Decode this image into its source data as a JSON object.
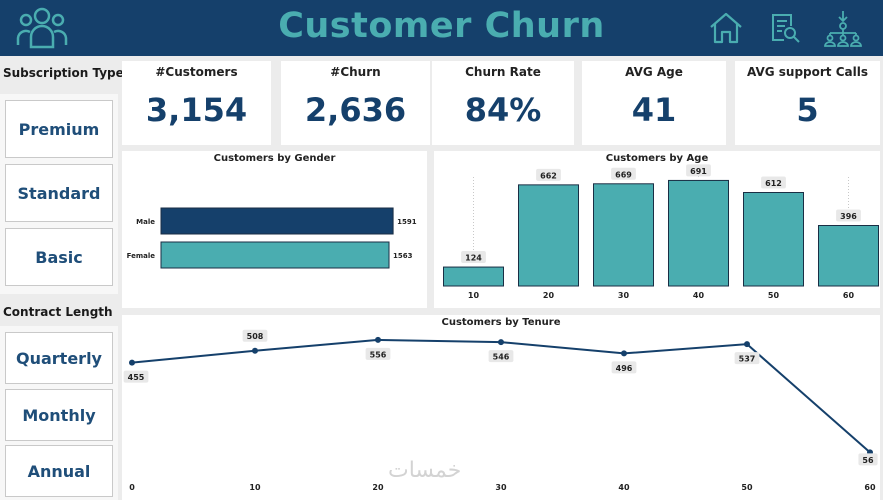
{
  "header": {
    "title": "Customer Churn",
    "icons": [
      "people-icon",
      "home-icon",
      "report-search-icon",
      "org-chart-icon"
    ]
  },
  "subscription": {
    "heading": "Subscription Type",
    "options": [
      "Premium",
      "Standard",
      "Basic"
    ]
  },
  "contract": {
    "heading": "Contract Length",
    "options": [
      "Quarterly",
      "Monthly",
      "Annual"
    ]
  },
  "kpis": [
    {
      "label": "#Customers",
      "value": "3,154"
    },
    {
      "label": "#Churn",
      "value": "2,636"
    },
    {
      "label": "Churn Rate",
      "value": "84%"
    },
    {
      "label": "AVG Age",
      "value": "41"
    },
    {
      "label": "AVG support Calls",
      "value": "5"
    }
  ],
  "colors": {
    "navy": "#15406b",
    "teal": "#4aadb0"
  },
  "watermark": "خمسات",
  "chart_data": [
    {
      "type": "bar",
      "orientation": "horizontal",
      "title": "Customers by Gender",
      "categories": [
        "Male",
        "Female"
      ],
      "values": [
        1591,
        1563
      ],
      "xlim": [
        0,
        1700
      ]
    },
    {
      "type": "bar",
      "title": "Customers by Age",
      "categories": [
        "10",
        "20",
        "30",
        "40",
        "50",
        "60"
      ],
      "values": [
        124,
        662,
        669,
        691,
        612,
        396
      ],
      "ylim": [
        0,
        720
      ]
    },
    {
      "type": "line",
      "title": "Customers by Tenure",
      "x": [
        0,
        10,
        20,
        30,
        40,
        50,
        60
      ],
      "values": [
        455,
        508,
        556,
        546,
        496,
        537,
        56
      ],
      "xticks": [
        "0",
        "10",
        "20",
        "30",
        "40",
        "50",
        "60"
      ],
      "ylim": [
        0,
        600
      ]
    }
  ]
}
